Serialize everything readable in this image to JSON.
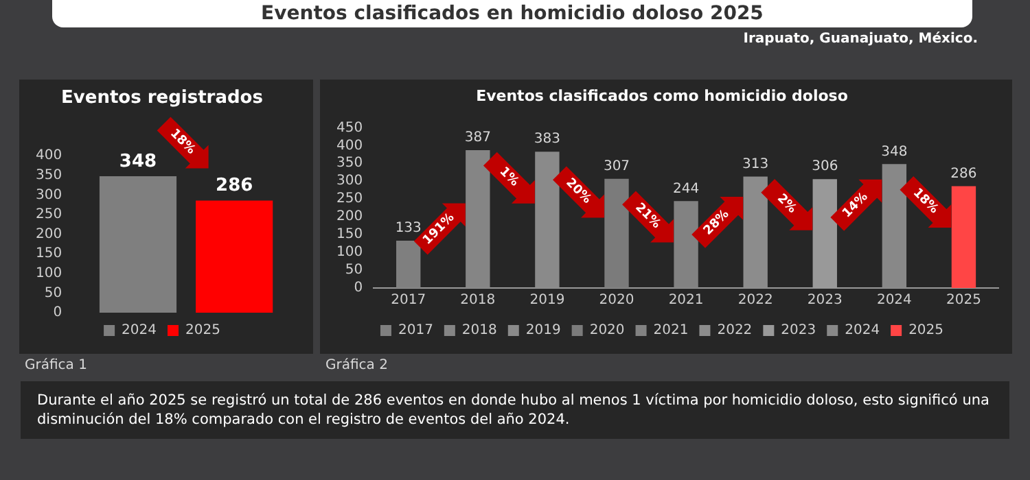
{
  "chart_data": [
    {
      "type": "other",
      "title": "Eventos clasificados en homicidio doloso 2025",
      "subtitle": "Irapuato, Guanajuato, México.",
      "annotations": [
        "Durante el año 2025 se registró un total de 286 eventos en donde hubo al menos 1 víctima por homicidio doloso, esto significó una disminución del 18% comparado con el registro de eventos del año 2024."
      ]
    },
    {
      "type": "bar",
      "title": "Eventos registrados",
      "categories": [
        null
      ],
      "series": [
        {
          "name": "2024",
          "color": "#7f7f7f",
          "values": [
            348
          ]
        },
        {
          "name": "2025",
          "color": "#ff0000",
          "values": [
            286
          ]
        }
      ],
      "ylim": [
        0,
        400
      ],
      "yticks": [
        0,
        50,
        100,
        150,
        200,
        250,
        300,
        350,
        400
      ],
      "tick_labels": "y",
      "grid": false,
      "legend": "bottom",
      "data_labels": true,
      "annotations": [
        "18%",
        "Gráfica 1"
      ]
    },
    {
      "type": "bar",
      "title": "Eventos clasificados como homicidio doloso",
      "categories": [
        "2017",
        "2018",
        "2019",
        "2020",
        "2021",
        "2022",
        "2023",
        "2024",
        "2025"
      ],
      "stacked": true,
      "series": [
        {
          "name": "2017",
          "color": "#7f7f7f",
          "values": [
            133,
            null,
            null,
            null,
            null,
            null,
            null,
            null,
            null
          ]
        },
        {
          "name": "2018",
          "color": "#858585",
          "values": [
            null,
            387,
            null,
            null,
            null,
            null,
            null,
            null,
            null
          ]
        },
        {
          "name": "2019",
          "color": "#8a8a8a",
          "values": [
            null,
            null,
            383,
            null,
            null,
            null,
            null,
            null,
            null
          ]
        },
        {
          "name": "2020",
          "color": "#7b7b7b",
          "values": [
            null,
            null,
            null,
            307,
            null,
            null,
            null,
            null,
            null
          ]
        },
        {
          "name": "2021",
          "color": "#828282",
          "values": [
            null,
            null,
            null,
            null,
            244,
            null,
            null,
            null,
            null
          ]
        },
        {
          "name": "2022",
          "color": "#8c8c8c",
          "values": [
            null,
            null,
            null,
            null,
            null,
            313,
            null,
            null,
            null
          ]
        },
        {
          "name": "2023",
          "color": "#999999",
          "values": [
            null,
            null,
            null,
            null,
            null,
            null,
            306,
            null,
            null
          ]
        },
        {
          "name": "2024",
          "color": "#888888",
          "values": [
            null,
            null,
            null,
            null,
            null,
            null,
            null,
            348,
            null
          ]
        },
        {
          "name": "2025",
          "color": "#ff4545",
          "values": [
            null,
            null,
            null,
            null,
            null,
            null,
            null,
            null,
            286
          ]
        }
      ],
      "ylim": [
        0,
        450
      ],
      "yticks": [
        0,
        50,
        100,
        150,
        200,
        250,
        300,
        350,
        400,
        450
      ],
      "grid": false,
      "legend": "bottom",
      "data_labels": true,
      "annotations": [
        "191%",
        "1%",
        "20%",
        "21%",
        "28%",
        "2%",
        "14%",
        "18%",
        "Gráfica 2"
      ]
    }
  ]
}
